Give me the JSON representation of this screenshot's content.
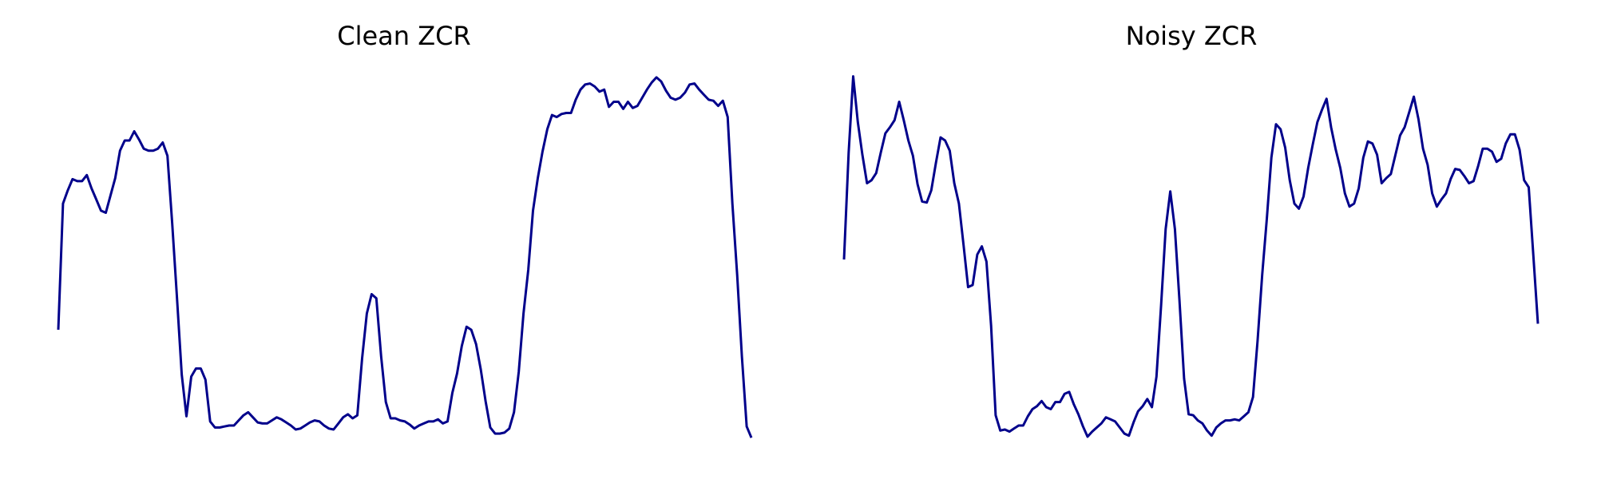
{
  "chart_data": [
    {
      "type": "line",
      "title": "Clean ZCR",
      "color": "#00008b",
      "ylim": [
        0,
        0.4
      ],
      "values": [
        0.116,
        0.24,
        0.253,
        0.264,
        0.262,
        0.262,
        0.268,
        0.255,
        0.244,
        0.233,
        0.231,
        0.248,
        0.265,
        0.292,
        0.302,
        0.302,
        0.311,
        0.303,
        0.294,
        0.292,
        0.292,
        0.294,
        0.3,
        0.287,
        0.22,
        0.148,
        0.072,
        0.031,
        0.07,
        0.078,
        0.078,
        0.067,
        0.026,
        0.02,
        0.02,
        0.021,
        0.022,
        0.022,
        0.027,
        0.032,
        0.035,
        0.03,
        0.025,
        0.024,
        0.024,
        0.027,
        0.03,
        0.028,
        0.025,
        0.022,
        0.018,
        0.019,
        0.022,
        0.025,
        0.027,
        0.026,
        0.022,
        0.019,
        0.018,
        0.024,
        0.03,
        0.033,
        0.029,
        0.032,
        0.088,
        0.132,
        0.151,
        0.147,
        0.09,
        0.045,
        0.029,
        0.029,
        0.027,
        0.026,
        0.023,
        0.019,
        0.022,
        0.024,
        0.026,
        0.026,
        0.028,
        0.024,
        0.026,
        0.054,
        0.073,
        0.1,
        0.119,
        0.116,
        0.102,
        0.077,
        0.046,
        0.02,
        0.014,
        0.014,
        0.015,
        0.019,
        0.035,
        0.075,
        0.132,
        0.175,
        0.233,
        0.265,
        0.291,
        0.313,
        0.327,
        0.325,
        0.328,
        0.329,
        0.329,
        0.342,
        0.352,
        0.357,
        0.358,
        0.355,
        0.35,
        0.352,
        0.335,
        0.34,
        0.34,
        0.333,
        0.34,
        0.334,
        0.336,
        0.344,
        0.352,
        0.359,
        0.364,
        0.36,
        0.351,
        0.344,
        0.342,
        0.344,
        0.349,
        0.357,
        0.358,
        0.352,
        0.347,
        0.342,
        0.341,
        0.336,
        0.341,
        0.325,
        0.24,
        0.17,
        0.09,
        0.021,
        0.01
      ]
    },
    {
      "type": "line",
      "title": "Noisy ZCR",
      "color": "#00008b",
      "ylim": [
        0,
        0.4
      ],
      "values": [
        0.185,
        0.29,
        0.365,
        0.32,
        0.288,
        0.26,
        0.263,
        0.27,
        0.29,
        0.309,
        0.315,
        0.322,
        0.34,
        0.322,
        0.302,
        0.287,
        0.259,
        0.242,
        0.241,
        0.253,
        0.28,
        0.305,
        0.302,
        0.292,
        0.26,
        0.24,
        0.2,
        0.158,
        0.16,
        0.19,
        0.198,
        0.183,
        0.12,
        0.032,
        0.017,
        0.018,
        0.016,
        0.019,
        0.022,
        0.022,
        0.031,
        0.038,
        0.041,
        0.046,
        0.04,
        0.038,
        0.045,
        0.045,
        0.053,
        0.055,
        0.043,
        0.033,
        0.021,
        0.011,
        0.016,
        0.02,
        0.024,
        0.03,
        0.028,
        0.026,
        0.02,
        0.014,
        0.012,
        0.025,
        0.036,
        0.041,
        0.048,
        0.04,
        0.07,
        0.14,
        0.215,
        0.252,
        0.215,
        0.145,
        0.068,
        0.033,
        0.032,
        0.027,
        0.024,
        0.017,
        0.012,
        0.02,
        0.024,
        0.027,
        0.027,
        0.028,
        0.027,
        0.031,
        0.035,
        0.05,
        0.105,
        0.17,
        0.225,
        0.285,
        0.318,
        0.313,
        0.295,
        0.263,
        0.24,
        0.235,
        0.247,
        0.275,
        0.298,
        0.32,
        0.332,
        0.343,
        0.315,
        0.293,
        0.275,
        0.25,
        0.237,
        0.24,
        0.255,
        0.285,
        0.301,
        0.299,
        0.288,
        0.26,
        0.265,
        0.269,
        0.288,
        0.307,
        0.315,
        0.33,
        0.345,
        0.323,
        0.294,
        0.278,
        0.25,
        0.237,
        0.244,
        0.25,
        0.264,
        0.274,
        0.273,
        0.267,
        0.26,
        0.262,
        0.277,
        0.294,
        0.294,
        0.291,
        0.281,
        0.284,
        0.299,
        0.308,
        0.308,
        0.293,
        0.263,
        0.256,
        0.19,
        0.122
      ]
    }
  ]
}
